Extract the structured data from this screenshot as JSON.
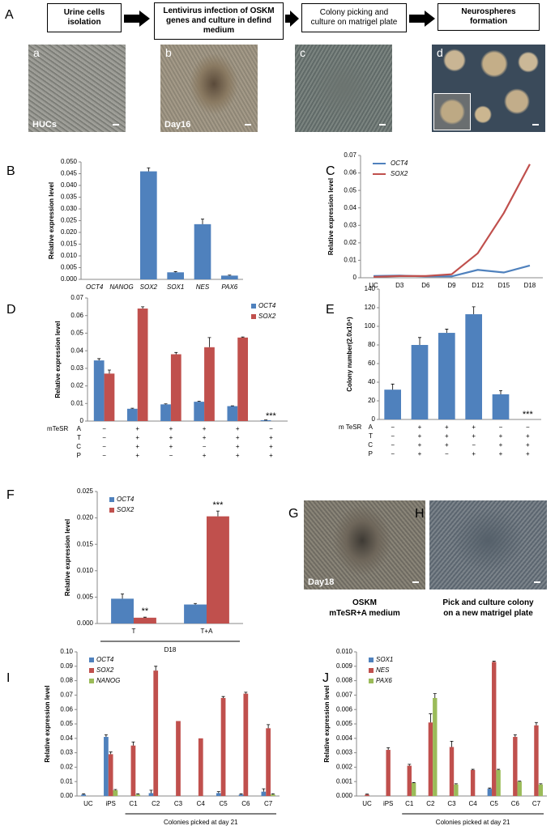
{
  "panel_a": {
    "panel": "A",
    "flow": [
      "Urine cells isolation",
      "Lentivirus infection of OSKM genes and culture in defind medium",
      "Colony picking and culture on matrigel plate",
      "Neurospheres formation"
    ],
    "photos": [
      {
        "letter": "a",
        "label": "HUCs"
      },
      {
        "letter": "b",
        "label": "Day16"
      },
      {
        "letter": "c"
      },
      {
        "letter": "d"
      }
    ]
  },
  "panel_gh": [
    {
      "panel": "G",
      "label": "Day18",
      "caption": [
        "OSKM",
        "mTeSR+A medium"
      ]
    },
    {
      "panel": "H",
      "caption": [
        "Pick and culture colony",
        "on a new matrigel plate"
      ]
    }
  ],
  "chart_data": [
    {
      "panel": "B",
      "type": "bar",
      "y_label": "Relative expression level",
      "categories": [
        "OCT4",
        "NANOG",
        "SOX2",
        "SOX1",
        "NES",
        "PAX6"
      ],
      "series": [
        {
          "color": "#4f81bd",
          "values": [
            0,
            0,
            0.046,
            0.003,
            0.0235,
            0.0016
          ],
          "errors": [
            0,
            0,
            0.0015,
            0.0003,
            0.0022,
            0.0002
          ]
        }
      ],
      "ylim": [
        0,
        0.05
      ],
      "yticks": [
        {
          "value": 0,
          "label": "0.000"
        },
        {
          "value": 0.005,
          "label": "0.005"
        },
        {
          "value": 0.01,
          "label": "0.010"
        },
        {
          "value": 0.015,
          "label": "0.015"
        },
        {
          "value": 0.02,
          "label": "0.020"
        },
        {
          "value": 0.025,
          "label": "0.025"
        },
        {
          "value": 0.03,
          "label": "0.030"
        },
        {
          "value": 0.035,
          "label": "0.035"
        },
        {
          "value": 0.04,
          "label": "0.040"
        },
        {
          "value": 0.045,
          "label": "0.045"
        },
        {
          "value": 0.05,
          "label": "0.050"
        }
      ]
    },
    {
      "panel": "C",
      "type": "line",
      "y_label": "Relative expression level",
      "categories": [
        "UC",
        "D3",
        "D6",
        "D9",
        "D12",
        "D15",
        "D18"
      ],
      "series": [
        {
          "name": "OCT4",
          "color": "#4f81bd",
          "values": [
            0.001,
            0.0012,
            0.0008,
            0.0008,
            0.0045,
            0.003,
            0.007
          ]
        },
        {
          "name": "SOX2",
          "color": "#c0504d",
          "values": [
            0.0005,
            0.001,
            0.001,
            0.002,
            0.014,
            0.037,
            0.065
          ]
        }
      ],
      "ylim": [
        0,
        0.07
      ],
      "yticks": [
        0,
        0.01,
        0.02,
        0.03,
        0.04,
        0.05,
        0.06,
        0.07
      ],
      "legend": "top-left"
    },
    {
      "panel": "D",
      "type": "bar",
      "y_label": "Relative expression level",
      "categories": [
        null,
        null,
        null,
        null,
        null,
        null
      ],
      "series": [
        {
          "name": "OCT4",
          "color": "#4f81bd",
          "values": [
            0.0345,
            0.007,
            0.0095,
            0.011,
            0.0085,
            0.0005
          ],
          "errors": [
            0.001,
            0.0003,
            0.0003,
            0.0003,
            0.0002,
            0.0001
          ]
        },
        {
          "name": "SOX2",
          "color": "#c0504d",
          "values": [
            0.027,
            0.064,
            0.038,
            0.042,
            0.0475,
            0
          ],
          "errors": [
            0.002,
            0.001,
            0.001,
            0.0055,
            0.0003,
            0
          ]
        }
      ],
      "ylim": [
        0,
        0.07
      ],
      "yticks": [
        0,
        0.01,
        0.02,
        0.03,
        0.04,
        0.05,
        0.06,
        0.07
      ],
      "legend": "top-right",
      "annotations": [
        null,
        null,
        null,
        null,
        null,
        "***"
      ],
      "conditions": {
        "label": "mTeSR",
        "rows": [
          {
            "name": "A",
            "signs": [
              "−",
              "+",
              "+",
              "+",
              "+",
              "−"
            ]
          },
          {
            "name": "T",
            "signs": [
              "−",
              "+",
              "+",
              "+",
              "+",
              "+"
            ]
          },
          {
            "name": "C",
            "signs": [
              "−",
              "+",
              "+",
              "−",
              "+",
              "+"
            ]
          },
          {
            "name": "P",
            "signs": [
              "−",
              "+",
              "−",
              "+",
              "+",
              "+"
            ]
          }
        ]
      }
    },
    {
      "panel": "E",
      "type": "bar",
      "y_label": "Colony number(2.0x10⁴)",
      "categories": [
        null,
        null,
        null,
        null,
        null,
        null
      ],
      "series": [
        {
          "color": "#4f81bd",
          "values": [
            32,
            80,
            93,
            113,
            27,
            0
          ],
          "errors": [
            6,
            8,
            4,
            8,
            4,
            0
          ]
        }
      ],
      "ylim": [
        0,
        140
      ],
      "yticks": [
        0,
        20,
        40,
        60,
        80,
        100,
        120,
        140
      ],
      "annotations": [
        null,
        null,
        null,
        null,
        null,
        "***"
      ],
      "conditions": {
        "label": "m TeSR",
        "rows": [
          {
            "name": "A",
            "signs": [
              "−",
              "+",
              "+",
              "+",
              "−",
              "−"
            ]
          },
          {
            "name": "T",
            "signs": [
              "−",
              "+",
              "+",
              "+",
              "+",
              "+"
            ]
          },
          {
            "name": "C",
            "signs": [
              "−",
              "+",
              "+",
              "−",
              "+",
              "+"
            ]
          },
          {
            "name": "P",
            "signs": [
              "−",
              "+",
              "−",
              "+",
              "+",
              "+"
            ]
          }
        ]
      }
    },
    {
      "panel": "F",
      "type": "bar",
      "y_label": "Relative expression level",
      "x_label": "D18",
      "categories": [
        "T",
        "T+A"
      ],
      "series": [
        {
          "name": "OCT4",
          "color": "#4f81bd",
          "values": [
            0.0047,
            0.0036
          ],
          "errors": [
            0.0009,
            0.0002
          ]
        },
        {
          "name": "SOX2",
          "color": "#c0504d",
          "values": [
            0.0011,
            0.0203
          ],
          "errors": [
            0.0001,
            0.001
          ],
          "annotations": [
            "**",
            "***"
          ]
        }
      ],
      "ylim": [
        0,
        0.025
      ],
      "yticks": [
        {
          "value": 0,
          "label": "0.000"
        },
        {
          "value": 0.005,
          "label": "0.005"
        },
        {
          "value": 0.01,
          "label": "0.010"
        },
        {
          "value": 0.015,
          "label": "0.015"
        },
        {
          "value": 0.02,
          "label": "0.020"
        },
        {
          "value": 0.025,
          "label": "0.025"
        }
      ],
      "legend": "top-left"
    },
    {
      "panel": "I",
      "type": "bar",
      "y_label": "Relative expression level",
      "x_label": "Colonies picked at day 21",
      "categories": [
        "UC",
        "iPS",
        "C1",
        "C2",
        "C3",
        "C4",
        "C5",
        "C6",
        "C7"
      ],
      "series": [
        {
          "name": "OCT4",
          "color": "#4f81bd",
          "values": [
            0.001,
            0.041,
            0,
            0.002,
            0,
            0,
            0.002,
            0.001,
            0.003
          ],
          "errors": [
            0.0005,
            0.0015,
            0,
            0.002,
            0,
            0,
            0.001,
            0.0005,
            0.002
          ]
        },
        {
          "name": "SOX2",
          "color": "#c0504d",
          "values": [
            0,
            0.029,
            0.035,
            0.087,
            0.052,
            0.04,
            0.068,
            0.071,
            0.047
          ],
          "errors": [
            0,
            0.0015,
            0.0025,
            0.003,
            0,
            0,
            0.001,
            0.001,
            0.0025
          ]
        },
        {
          "name": "NANOG",
          "color": "#9bbb59",
          "values": [
            0,
            0.004,
            0.001,
            0,
            0,
            0,
            0,
            0,
            0.001
          ],
          "errors": [
            0,
            0.0005,
            0.0005,
            0,
            0,
            0,
            0,
            0,
            0.0005
          ]
        }
      ],
      "ylim": [
        0,
        0.1
      ],
      "yticks": [
        {
          "value": 0,
          "label": "0.00"
        },
        {
          "value": 0.01,
          "label": "0.01"
        },
        {
          "value": 0.02,
          "label": "0.02"
        },
        {
          "value": 0.03,
          "label": "0.03"
        },
        {
          "value": 0.04,
          "label": "0.04"
        },
        {
          "value": 0.05,
          "label": "0.05"
        },
        {
          "value": 0.06,
          "label": "0.06"
        },
        {
          "value": 0.07,
          "label": "0.07"
        },
        {
          "value": 0.08,
          "label": "0.08"
        },
        {
          "value": 0.09,
          "label": "0.09"
        },
        {
          "value": 0.1,
          "label": "0.10"
        }
      ],
      "legend": "top-left"
    },
    {
      "panel": "J",
      "type": "bar",
      "y_label": "Relative expression level",
      "x_label": "Colonies picked at day 21",
      "categories": [
        "UC",
        "iPS",
        "C1",
        "C2",
        "C3",
        "C4",
        "C5",
        "C6",
        "C7"
      ],
      "series": [
        {
          "name": "SOX1",
          "color": "#4f81bd",
          "values": [
            0,
            0,
            0,
            0,
            0,
            0,
            0.0005,
            0,
            0
          ],
          "errors": [
            0,
            0,
            0,
            0,
            0,
            0,
            5e-05,
            0,
            0
          ]
        },
        {
          "name": "NES",
          "color": "#c0504d",
          "values": [
            0.0001,
            0.0032,
            0.0021,
            0.0051,
            0.0034,
            0.0018,
            0.0093,
            0.0041,
            0.0049
          ],
          "errors": [
            3e-05,
            0.00015,
            0.0001,
            0.0006,
            0.0004,
            5e-05,
            5e-05,
            0.00015,
            0.0002
          ]
        },
        {
          "name": "PAX6",
          "color": "#9bbb59",
          "values": [
            0,
            0,
            0.0009,
            0.0068,
            0.0008,
            0,
            0.0018,
            0.001,
            0.0008
          ],
          "errors": [
            0,
            0,
            3e-05,
            0.0003,
            5e-05,
            0,
            5e-05,
            3e-05,
            5e-05
          ]
        }
      ],
      "ylim": [
        0,
        0.01
      ],
      "yticks": [
        {
          "value": 0,
          "label": "0.000"
        },
        {
          "value": 0.001,
          "label": "0.001"
        },
        {
          "value": 0.002,
          "label": "0.002"
        },
        {
          "value": 0.003,
          "label": "0.003"
        },
        {
          "value": 0.004,
          "label": "0.004"
        },
        {
          "value": 0.005,
          "label": "0.005"
        },
        {
          "value": 0.006,
          "label": "0.006"
        },
        {
          "value": 0.007,
          "label": "0.007"
        },
        {
          "value": 0.008,
          "label": "0.008"
        },
        {
          "value": 0.009,
          "label": "0.009"
        },
        {
          "value": 0.01,
          "label": "0.010"
        }
      ],
      "legend": "top-left"
    }
  ]
}
